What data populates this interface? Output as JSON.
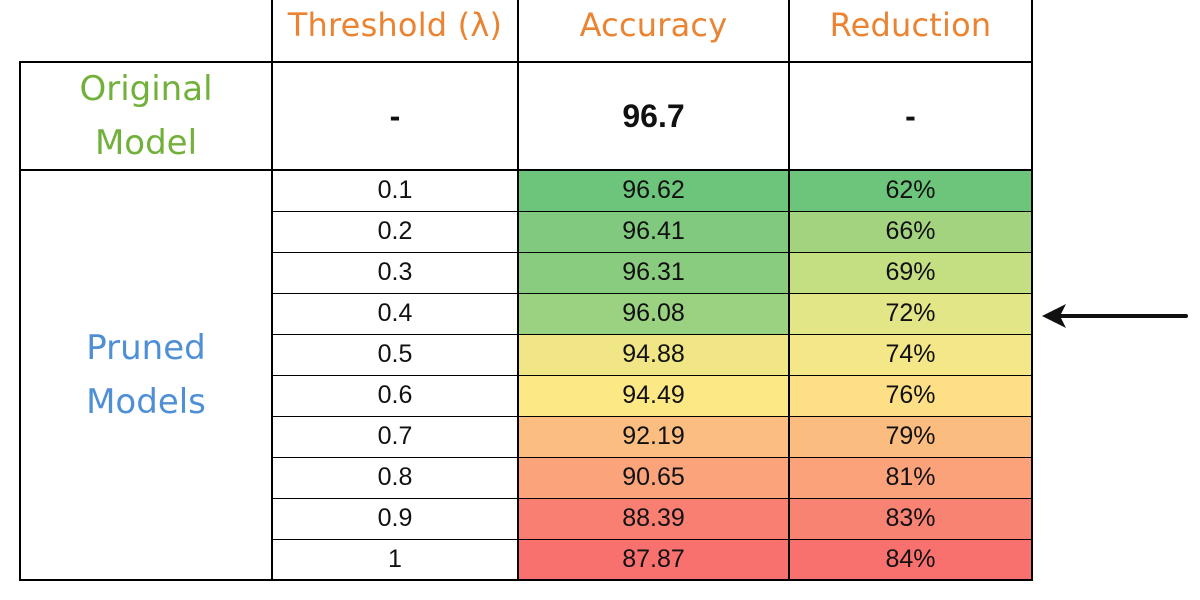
{
  "chart_data": {
    "type": "table",
    "columns": [
      "Threshold (λ)",
      "Accuracy",
      "Reduction"
    ],
    "original": {
      "label_line1": "Original",
      "label_line2": "Model",
      "threshold": "-",
      "accuracy": "96.7",
      "reduction": "-"
    },
    "pruned": {
      "label_line1": "Pruned",
      "label_line2": "Models",
      "rows": [
        {
          "threshold": "0.1",
          "accuracy": "96.62",
          "reduction": "62%",
          "accuracy_color": "#6cc57b",
          "reduction_color": "#6cc57b"
        },
        {
          "threshold": "0.2",
          "accuracy": "96.41",
          "reduction": "66%",
          "accuracy_color": "#81c97e",
          "reduction_color": "#a3d37f"
        },
        {
          "threshold": "0.3",
          "accuracy": "96.31",
          "reduction": "69%",
          "accuracy_color": "#8acc7f",
          "reduction_color": "#c4de82"
        },
        {
          "threshold": "0.4",
          "accuracy": "96.08",
          "reduction": "72%",
          "accuracy_color": "#9bd282",
          "reduction_color": "#e2e686"
        },
        {
          "threshold": "0.5",
          "accuracy": "94.88",
          "reduction": "74%",
          "accuracy_color": "#f1e686",
          "reduction_color": "#f4e787"
        },
        {
          "threshold": "0.6",
          "accuracy": "94.49",
          "reduction": "76%",
          "accuracy_color": "#fde886",
          "reduction_color": "#fde086"
        },
        {
          "threshold": "0.7",
          "accuracy": "92.19",
          "reduction": "79%",
          "accuracy_color": "#fbbe80",
          "reduction_color": "#fbbc7f"
        },
        {
          "threshold": "0.8",
          "accuracy": "90.65",
          "reduction": "81%",
          "accuracy_color": "#fba47b",
          "reduction_color": "#fba27b"
        },
        {
          "threshold": "0.9",
          "accuracy": "88.39",
          "reduction": "83%",
          "accuracy_color": "#f97f73",
          "reduction_color": "#f98373"
        },
        {
          "threshold": "1",
          "accuracy": "87.87",
          "reduction": "84%",
          "accuracy_color": "#f8716f",
          "reduction_color": "#f8716f"
        }
      ]
    },
    "highlighted_threshold": "0.4"
  }
}
